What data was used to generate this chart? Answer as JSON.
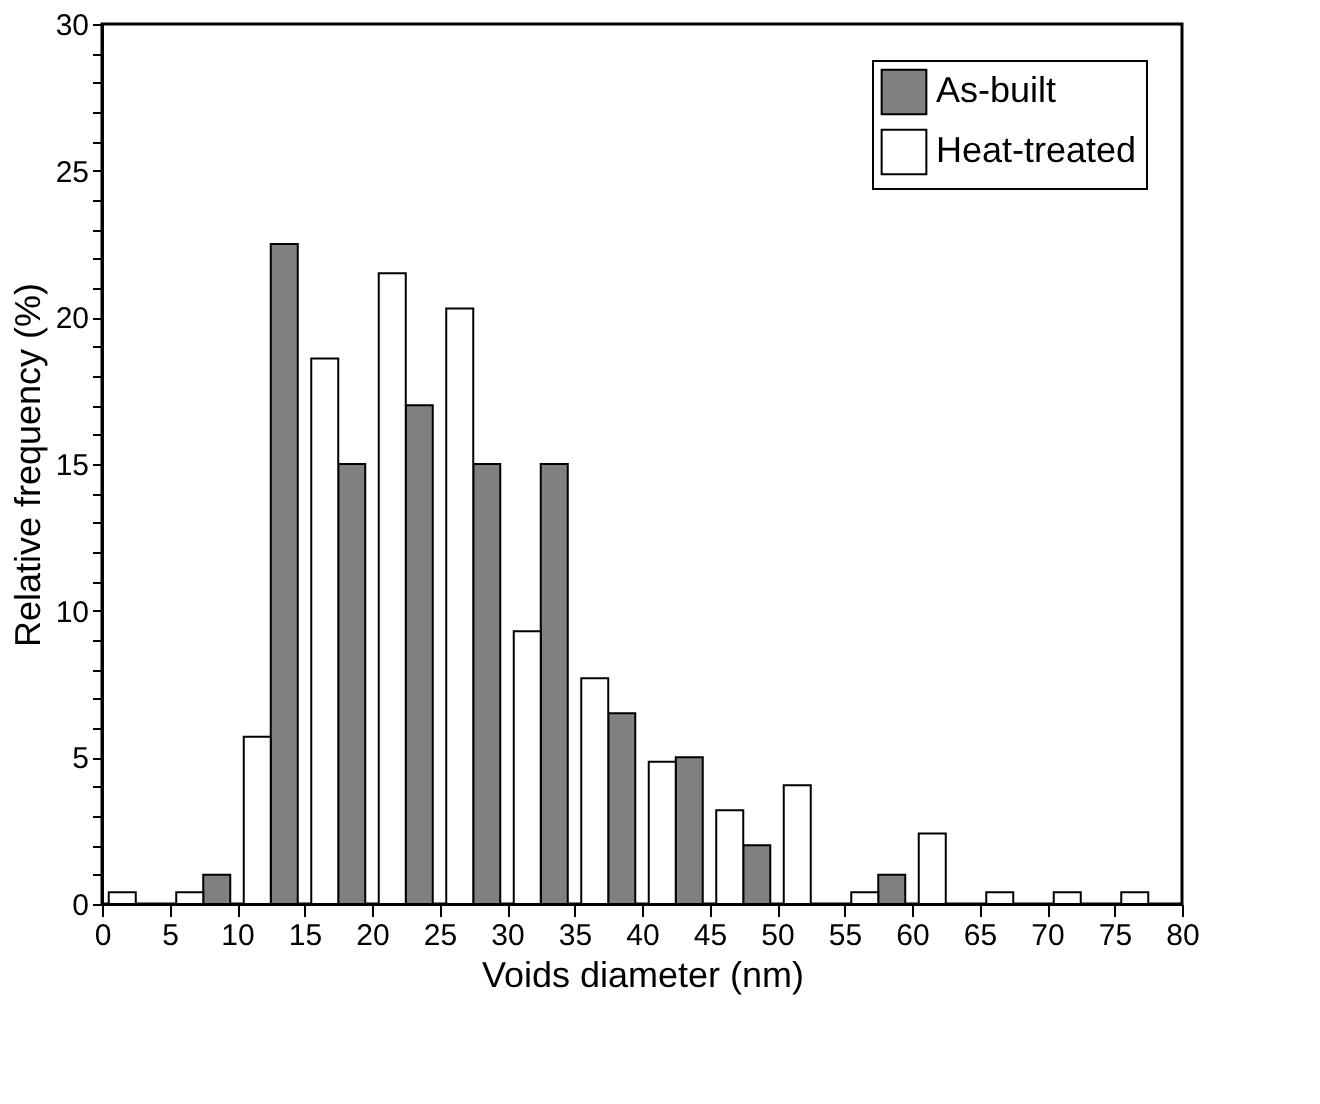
{
  "chart_data": {
    "type": "bar",
    "xlabel": "Voids diameter (nm)",
    "ylabel": "Relative frequency (%)",
    "xlim": [
      0,
      80
    ],
    "xticks": [
      0,
      5,
      10,
      15,
      20,
      25,
      30,
      35,
      40,
      45,
      50,
      55,
      60,
      65,
      70,
      75,
      80
    ],
    "ylim": [
      0,
      30
    ],
    "yticks": [
      0,
      {
        "value": 1,
        "label": null
      },
      {
        "value": 2,
        "label": null
      },
      {
        "value": 3,
        "label": null
      },
      {
        "value": 4,
        "label": null
      },
      5,
      {
        "value": 6,
        "label": null
      },
      {
        "value": 7,
        "label": null
      },
      {
        "value": 8,
        "label": null
      },
      {
        "value": 9,
        "label": null
      },
      10,
      {
        "value": 11,
        "label": null
      },
      {
        "value": 12,
        "label": null
      },
      {
        "value": 13,
        "label": null
      },
      {
        "value": 14,
        "label": null
      },
      15,
      {
        "value": 16,
        "label": null
      },
      {
        "value": 17,
        "label": null
      },
      {
        "value": 18,
        "label": null
      },
      {
        "value": 19,
        "label": null
      },
      20,
      {
        "value": 21,
        "label": null
      },
      {
        "value": 22,
        "label": null
      },
      {
        "value": 23,
        "label": null
      },
      {
        "value": 24,
        "label": null
      },
      25,
      {
        "value": 26,
        "label": null
      },
      {
        "value": 27,
        "label": null
      },
      {
        "value": 28,
        "label": null
      },
      {
        "value": 29,
        "label": null
      },
      30
    ],
    "grid": false,
    "legend": "top right",
    "series": [
      {
        "name": "As-built",
        "color": "#808080",
        "x": [
          8.5,
          13.5,
          18.5,
          23.5,
          28.5,
          33.5,
          38.5,
          43.5,
          48.5,
          58.5
        ],
        "values": [
          1.0,
          22.5,
          15.0,
          17.0,
          15.0,
          15.0,
          6.5,
          5.0,
          2.0,
          1.0
        ]
      },
      {
        "name": "Heat-treated",
        "color": "#ffffff",
        "x": [
          1.5,
          6.5,
          11.5,
          16.5,
          21.5,
          26.5,
          31.5,
          36.5,
          41.5,
          46.5,
          51.5,
          56.5,
          61.5,
          66.5,
          71.5,
          76.5
        ],
        "values": [
          0.4,
          0.4,
          5.7,
          18.6,
          21.5,
          20.3,
          9.3,
          7.7,
          4.85,
          3.2,
          4.05,
          0.4,
          2.4,
          0.4,
          0.4,
          0.4
        ]
      }
    ]
  }
}
